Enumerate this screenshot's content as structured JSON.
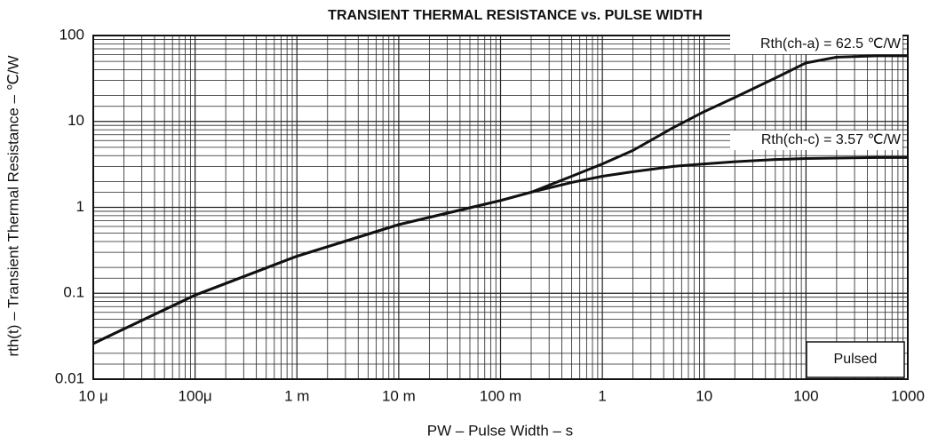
{
  "chart_data": {
    "type": "line",
    "title": "TRANSIENT THERMAL RESISTANCE vs. PULSE WIDTH",
    "x_label": "PW – Pulse Width – s",
    "y_label": "rth(t) – Transient Thermal Resistance – ℃/W",
    "annotations": [
      "Rth(ch-a) = 62.5 ℃/W",
      "Rth(ch-c) = 3.57 ℃/W",
      "Pulsed"
    ],
    "xscale": "log",
    "yscale": "log",
    "grid": true,
    "xlim": [
      1e-05,
      1000
    ],
    "ylim": [
      0.01,
      100
    ],
    "xticks": [
      {
        "value": 1e-05,
        "label": "10 μ"
      },
      {
        "value": 0.0001,
        "label": "100μ"
      },
      {
        "value": 0.001,
        "label": "1 m"
      },
      {
        "value": 0.01,
        "label": "10 m"
      },
      {
        "value": 0.1,
        "label": "100 m"
      },
      1,
      10,
      100,
      1000
    ],
    "yticks": [
      0.01,
      0.1,
      1,
      10,
      100
    ],
    "x": [
      1e-05,
      0.0001,
      0.001,
      0.01,
      0.1,
      0.2,
      0.5,
      1,
      2,
      5,
      10,
      20,
      50,
      100,
      200,
      500,
      1000
    ],
    "series": [
      {
        "color": "#111111",
        "values": [
          0.026,
          0.095,
          0.27,
          0.63,
          1.2,
          1.5,
          2.3,
          3.2,
          4.6,
          8.5,
          13,
          19,
          32,
          48,
          56,
          58,
          58
        ]
      },
      {
        "color": "#111111",
        "values": [
          0.026,
          0.095,
          0.27,
          0.63,
          1.2,
          1.5,
          1.95,
          2.3,
          2.6,
          3.0,
          3.2,
          3.4,
          3.6,
          3.7,
          3.75,
          3.8,
          3.8
        ]
      }
    ]
  }
}
